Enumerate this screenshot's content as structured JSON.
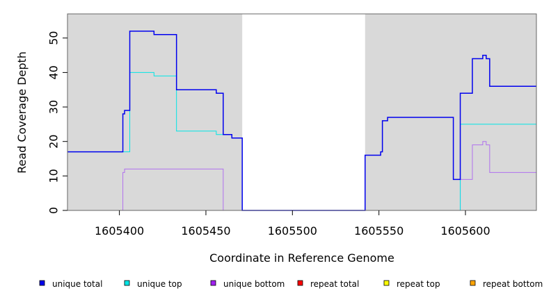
{
  "chart_data": {
    "type": "line",
    "title": "",
    "xlabel": "Coordinate in Reference Genome",
    "ylabel": "Read Coverage Depth",
    "xlim": [
      1605370,
      1605641
    ],
    "ylim": [
      0,
      57
    ],
    "x_ticks": [
      1605400,
      1605450,
      1605500,
      1605550,
      1605600
    ],
    "y_ticks": [
      0,
      10,
      20,
      30,
      40,
      50
    ],
    "shaded_regions": [
      [
        1605370,
        1605471
      ],
      [
        1605542,
        1605641
      ]
    ],
    "background_color": "#d9d9d9",
    "legend_position": "bottom",
    "series": [
      {
        "name": "unique total",
        "color": "#0000ee",
        "points": [
          [
            1605370,
            17
          ],
          [
            1605402,
            17
          ],
          [
            1605402,
            28
          ],
          [
            1605403,
            28
          ],
          [
            1605403,
            29
          ],
          [
            1605406,
            29
          ],
          [
            1605406,
            52
          ],
          [
            1605420,
            52
          ],
          [
            1605420,
            51
          ],
          [
            1605433,
            51
          ],
          [
            1605433,
            35
          ],
          [
            1605456,
            35
          ],
          [
            1605456,
            34
          ],
          [
            1605460,
            34
          ],
          [
            1605460,
            22
          ],
          [
            1605465,
            22
          ],
          [
            1605465,
            21
          ],
          [
            1605471,
            21
          ],
          [
            1605471,
            0
          ],
          [
            1605542,
            0
          ],
          [
            1605542,
            16
          ],
          [
            1605551,
            16
          ],
          [
            1605551,
            17
          ],
          [
            1605552,
            17
          ],
          [
            1605552,
            26
          ],
          [
            1605555,
            26
          ],
          [
            1605555,
            27
          ],
          [
            1605593,
            27
          ],
          [
            1605593,
            9
          ],
          [
            1605597,
            9
          ],
          [
            1605597,
            34
          ],
          [
            1605604,
            34
          ],
          [
            1605604,
            44
          ],
          [
            1605610,
            44
          ],
          [
            1605610,
            45
          ],
          [
            1605612,
            45
          ],
          [
            1605612,
            44
          ],
          [
            1605614,
            44
          ],
          [
            1605614,
            36
          ],
          [
            1605641,
            36
          ]
        ]
      },
      {
        "name": "unique top",
        "color": "#00e5e5",
        "points": [
          [
            1605370,
            17
          ],
          [
            1605406,
            17
          ],
          [
            1605406,
            40
          ],
          [
            1605420,
            40
          ],
          [
            1605420,
            39
          ],
          [
            1605433,
            39
          ],
          [
            1605433,
            23
          ],
          [
            1605456,
            23
          ],
          [
            1605456,
            22
          ],
          [
            1605465,
            22
          ],
          [
            1605465,
            21
          ],
          [
            1605471,
            21
          ],
          [
            1605471,
            0
          ],
          [
            1605597,
            0
          ],
          [
            1605597,
            25
          ],
          [
            1605641,
            25
          ]
        ]
      },
      {
        "name": "unique bottom",
        "color": "#b070ee",
        "points": [
          [
            1605370,
            0
          ],
          [
            1605402,
            0
          ],
          [
            1605402,
            11
          ],
          [
            1605403,
            11
          ],
          [
            1605403,
            12
          ],
          [
            1605460,
            12
          ],
          [
            1605460,
            0
          ],
          [
            1605597,
            0
          ],
          [
            1605597,
            9
          ],
          [
            1605604,
            9
          ],
          [
            1605604,
            19
          ],
          [
            1605610,
            19
          ],
          [
            1605610,
            20
          ],
          [
            1605612,
            20
          ],
          [
            1605612,
            19
          ],
          [
            1605614,
            19
          ],
          [
            1605614,
            11
          ],
          [
            1605641,
            11
          ]
        ]
      },
      {
        "name": "repeat total",
        "color": "#ff0000",
        "points": [
          [
            1605370,
            0
          ],
          [
            1605641,
            0
          ]
        ]
      },
      {
        "name": "repeat top",
        "color": "#ffff00",
        "points": [
          [
            1605370,
            0
          ],
          [
            1605641,
            0
          ]
        ]
      },
      {
        "name": "repeat bottom",
        "color": "#ffa500",
        "points": [
          [
            1605370,
            0
          ],
          [
            1605641,
            0
          ]
        ]
      }
    ],
    "legend": [
      {
        "label": "unique total",
        "color": "#0000ee"
      },
      {
        "label": "unique top",
        "color": "#00e5e5"
      },
      {
        "label": "unique bottom",
        "color": "#a020f0"
      },
      {
        "label": "repeat total",
        "color": "#ff0000"
      },
      {
        "label": "repeat top",
        "color": "#ffff00"
      },
      {
        "label": "repeat bottom",
        "color": "#ffa500"
      }
    ]
  }
}
